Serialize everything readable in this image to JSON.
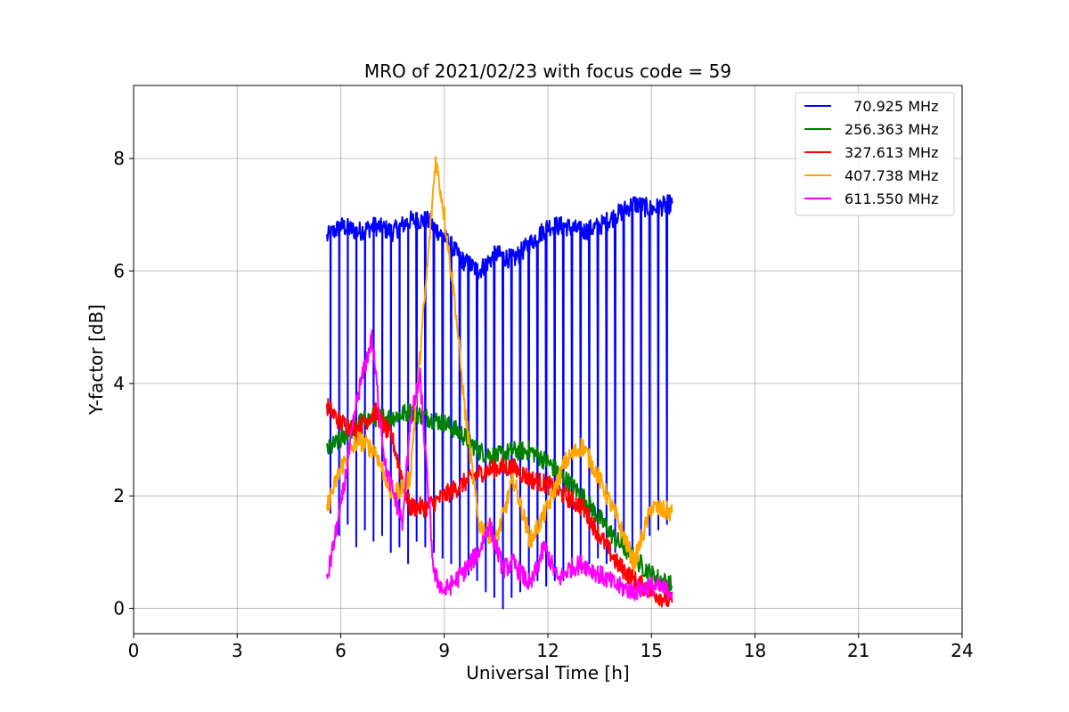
{
  "chart_data": {
    "type": "line",
    "title": "MRO of 2021/02/23 with focus code = 59",
    "xlabel": "Universal Time [h]",
    "ylabel": "Y-factor [dB]",
    "xlim": [
      0,
      24
    ],
    "ylim": [
      -0.45,
      9.3
    ],
    "xticks": [
      0,
      3,
      6,
      9,
      12,
      15,
      18,
      21,
      24
    ],
    "yticks": [
      0,
      2,
      4,
      6,
      8
    ],
    "grid": true,
    "legend_position": "top-right",
    "series": [
      {
        "name": "  70.925 MHz",
        "color": "#0000ff",
        "x": [
          5.6,
          6.0,
          6.5,
          7.0,
          7.5,
          8.0,
          8.5,
          9.0,
          9.5,
          10.0,
          10.5,
          11.0,
          11.5,
          12.0,
          12.5,
          13.0,
          13.5,
          14.0,
          14.5,
          15.0,
          15.6
        ],
        "values": [
          6.6,
          6.8,
          6.7,
          6.8,
          6.7,
          6.9,
          6.9,
          6.6,
          6.2,
          6.0,
          6.3,
          6.2,
          6.5,
          6.8,
          6.8,
          6.7,
          6.8,
          7.0,
          7.2,
          7.1,
          7.2
        ],
        "dips": [
          [
            5.7,
            1.7
          ],
          [
            5.95,
            1.3
          ],
          [
            6.2,
            1.5
          ],
          [
            6.45,
            1.1
          ],
          [
            6.7,
            1.4
          ],
          [
            6.95,
            1.2
          ],
          [
            7.2,
            1.3
          ],
          [
            7.45,
            1.0
          ],
          [
            7.7,
            1.1
          ],
          [
            7.95,
            0.8
          ],
          [
            8.2,
            1.2
          ],
          [
            8.45,
            1.1
          ],
          [
            8.7,
            1.0
          ],
          [
            8.95,
            0.9
          ],
          [
            9.2,
            0.8
          ],
          [
            9.45,
            0.7
          ],
          [
            9.7,
            0.6
          ],
          [
            9.95,
            0.5
          ],
          [
            10.2,
            0.3
          ],
          [
            10.45,
            0.2
          ],
          [
            10.7,
            0.0
          ],
          [
            10.95,
            0.2
          ],
          [
            11.2,
            0.3
          ],
          [
            11.45,
            0.4
          ],
          [
            11.7,
            0.5
          ],
          [
            11.95,
            0.4
          ],
          [
            12.2,
            0.5
          ],
          [
            12.45,
            0.5
          ],
          [
            12.7,
            0.6
          ],
          [
            12.95,
            0.7
          ],
          [
            13.2,
            0.8
          ],
          [
            13.45,
            0.9
          ],
          [
            13.7,
            0.8
          ],
          [
            13.95,
            1.0
          ],
          [
            14.2,
            1.1
          ],
          [
            14.45,
            1.0
          ],
          [
            14.7,
            1.2
          ],
          [
            14.95,
            1.3
          ],
          [
            15.2,
            1.4
          ],
          [
            15.45,
            1.5
          ]
        ]
      },
      {
        "name": "256.363 MHz",
        "color": "#008000",
        "x": [
          5.6,
          6.0,
          6.5,
          7.0,
          7.5,
          8.0,
          8.5,
          9.0,
          9.5,
          10.0,
          10.5,
          11.0,
          11.5,
          12.0,
          12.5,
          13.0,
          13.5,
          14.0,
          14.5,
          15.0,
          15.6
        ],
        "values": [
          2.8,
          3.0,
          3.3,
          3.4,
          3.4,
          3.5,
          3.4,
          3.3,
          3.1,
          2.8,
          2.7,
          2.8,
          2.8,
          2.6,
          2.3,
          2.0,
          1.6,
          1.2,
          0.9,
          0.6,
          0.4
        ]
      },
      {
        "name": "327.613 MHz",
        "color": "#ff0000",
        "x": [
          5.6,
          6.0,
          6.5,
          7.0,
          7.5,
          8.0,
          8.5,
          9.0,
          9.5,
          10.0,
          10.5,
          11.0,
          11.5,
          12.0,
          12.5,
          13.0,
          13.5,
          14.0,
          14.5,
          15.0,
          15.6
        ],
        "values": [
          3.6,
          3.3,
          3.2,
          3.5,
          3.0,
          1.8,
          1.8,
          2.0,
          2.2,
          2.4,
          2.5,
          2.5,
          2.3,
          2.2,
          2.0,
          1.8,
          1.3,
          0.8,
          0.5,
          0.3,
          0.1
        ]
      },
      {
        "name": "407.738 MHz",
        "color": "#ffa500",
        "x": [
          5.6,
          6.0,
          6.5,
          7.0,
          7.5,
          8.0,
          8.5,
          8.75,
          9.0,
          9.3,
          9.6,
          10.0,
          10.5,
          11.0,
          11.5,
          12.0,
          12.5,
          13.0,
          13.5,
          14.0,
          14.5,
          15.0,
          15.6
        ],
        "values": [
          1.8,
          2.5,
          3.0,
          2.8,
          2.0,
          2.3,
          6.0,
          8.0,
          7.0,
          5.5,
          3.5,
          1.5,
          1.2,
          2.3,
          1.2,
          1.8,
          2.6,
          2.9,
          2.3,
          1.6,
          0.8,
          1.8,
          1.7
        ]
      },
      {
        "name": "611.550 MHz",
        "color": "#ff00ff",
        "x": [
          5.6,
          6.0,
          6.5,
          6.9,
          7.3,
          7.8,
          8.0,
          8.3,
          8.7,
          9.0,
          9.5,
          10.0,
          10.3,
          10.7,
          11.0,
          11.5,
          11.9,
          12.3,
          12.6,
          13.0,
          13.5,
          14.0,
          14.5,
          15.0,
          15.6
        ],
        "values": [
          0.5,
          1.8,
          3.8,
          4.8,
          2.5,
          1.5,
          3.3,
          4.1,
          0.6,
          0.3,
          0.6,
          1.0,
          1.5,
          0.7,
          0.8,
          0.4,
          1.1,
          0.5,
          0.7,
          0.8,
          0.6,
          0.4,
          0.3,
          0.4,
          0.3
        ]
      }
    ]
  }
}
